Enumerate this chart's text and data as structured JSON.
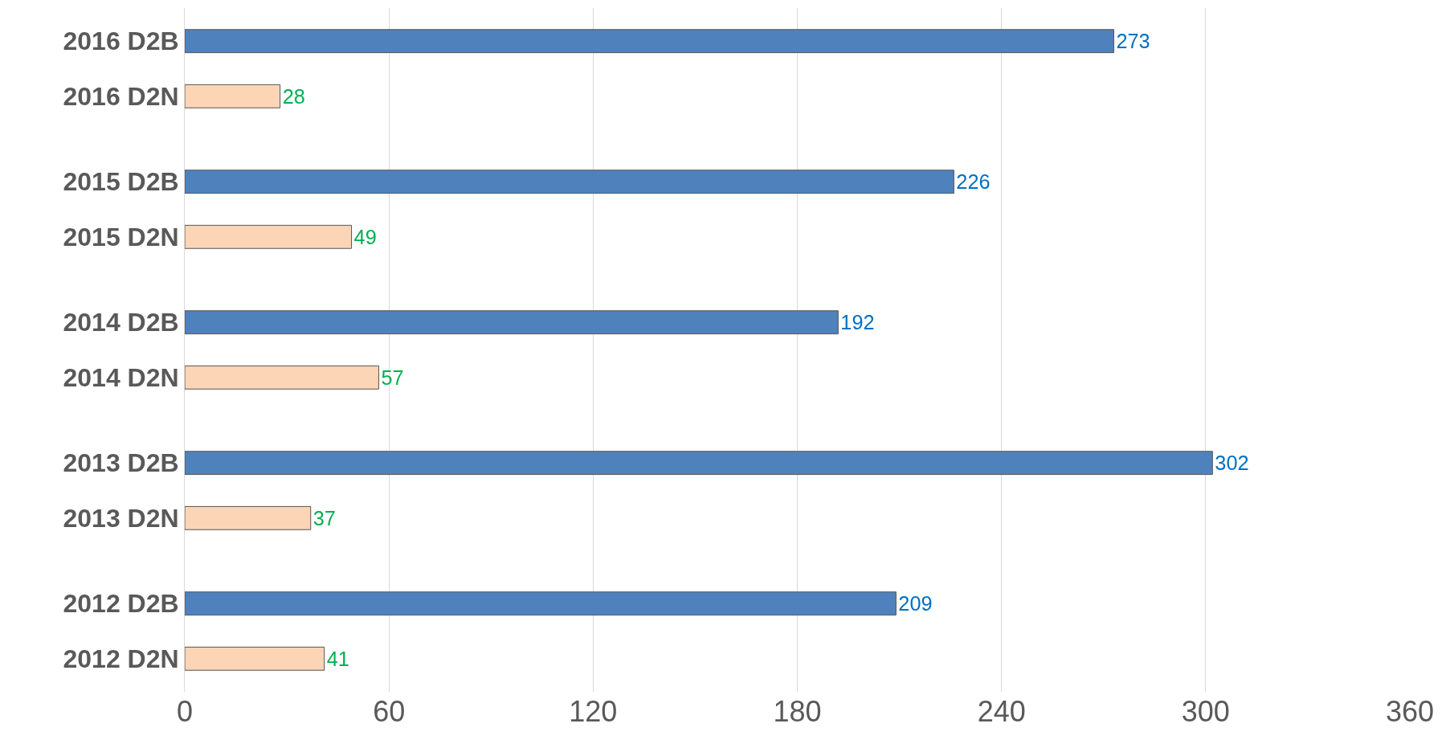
{
  "chart_data": {
    "type": "bar",
    "orientation": "horizontal",
    "categories": [
      "2016 D2B",
      "2016 D2N",
      "2015 D2B",
      "2015 D2N",
      "2014 D2B",
      "2014 D2N",
      "2013 D2B",
      "2013 D2N",
      "2012 D2B",
      "2012 D2N"
    ],
    "series": [
      {
        "color": "#4f81bd",
        "values": [
          273,
          null,
          226,
          null,
          192,
          null,
          302,
          null,
          209,
          null
        ]
      },
      {
        "color": "#fbd5b5",
        "values": [
          null,
          28,
          null,
          49,
          null,
          57,
          null,
          37,
          null,
          41
        ]
      }
    ],
    "data_labels": true,
    "xlim": [
      0,
      360
    ],
    "xticks": [
      0,
      60,
      120,
      180,
      240,
      300,
      360
    ],
    "grid": "x"
  }
}
